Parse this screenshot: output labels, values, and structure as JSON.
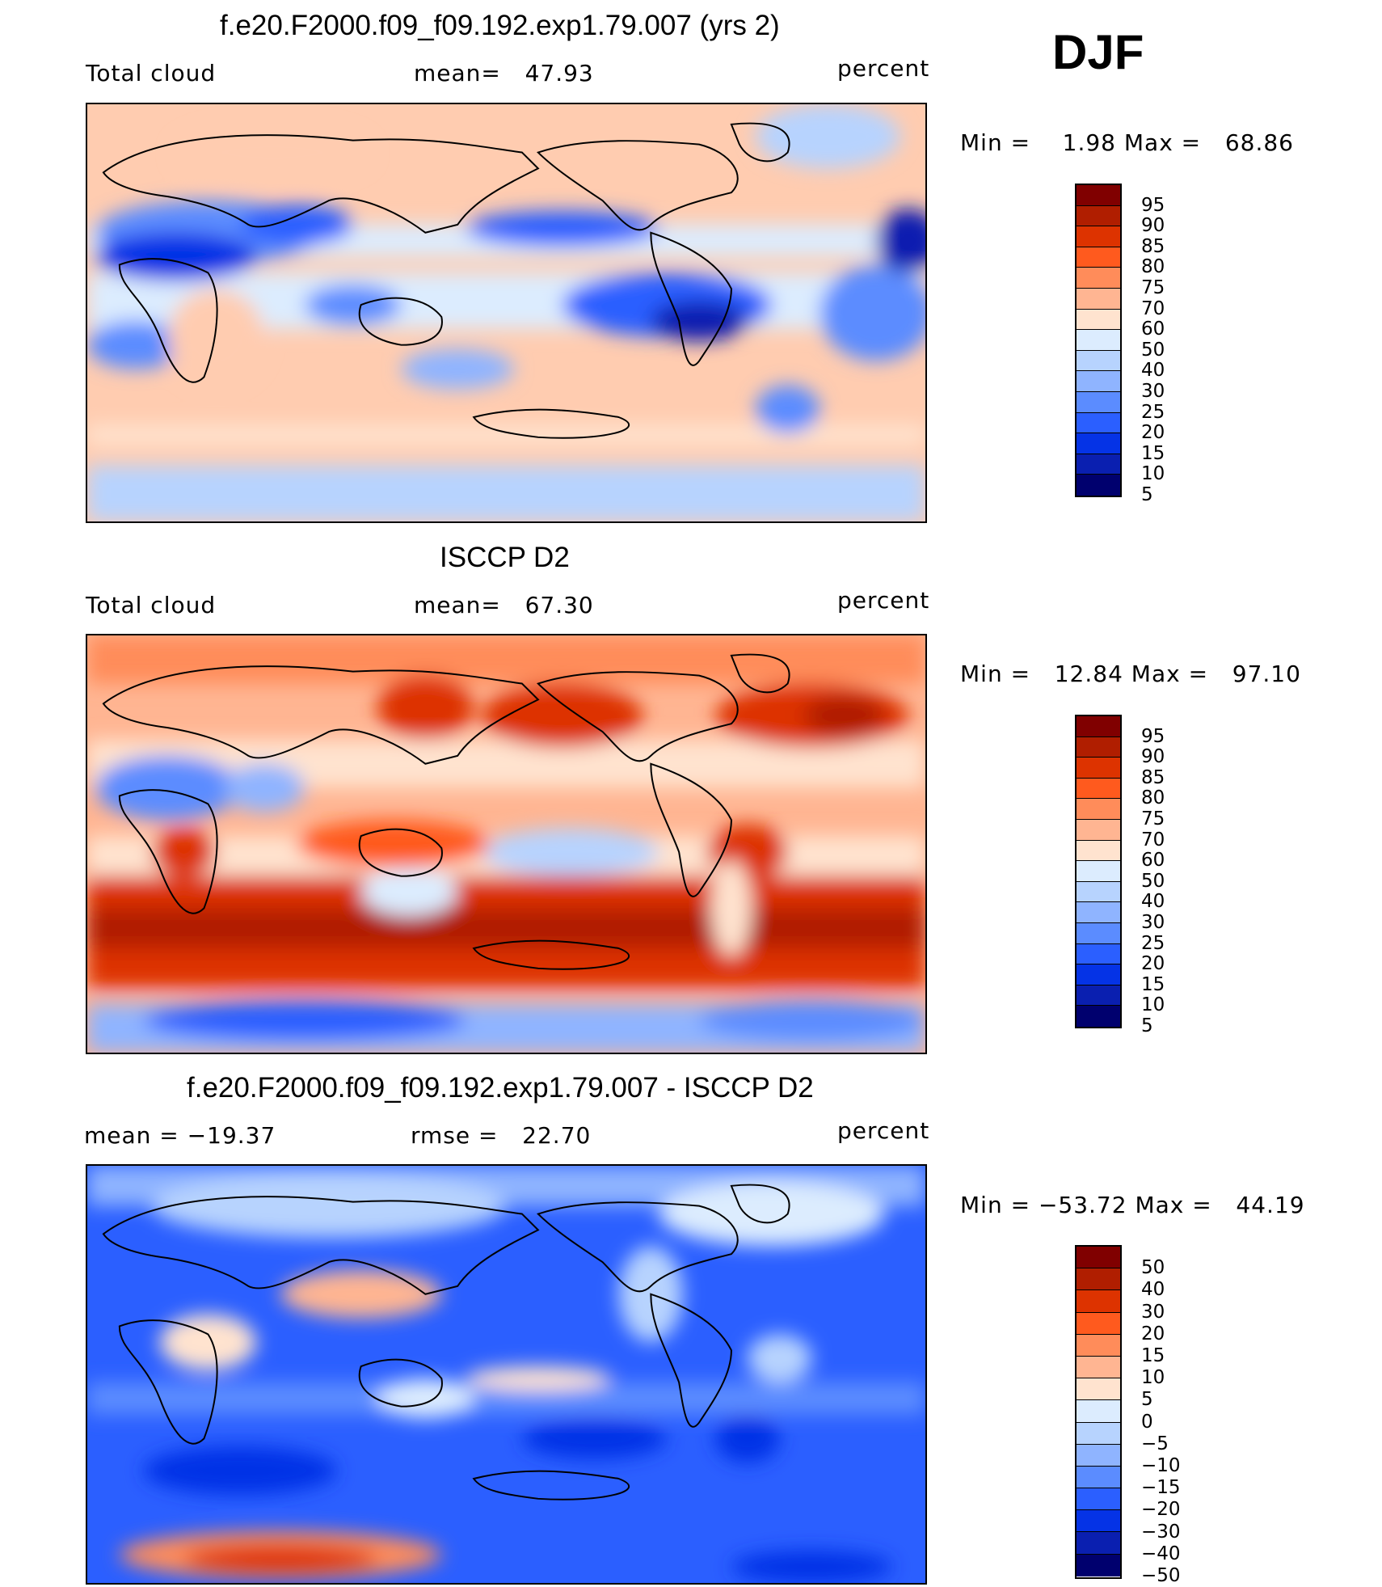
{
  "season": "DJF",
  "panels": [
    {
      "title": "f.e20.F2000.f09_f09.192.exp1.79.007 (yrs 2)",
      "left_label": "Total cloud",
      "center_label": "mean=   47.93",
      "right_label": "percent",
      "minmax": "Min =    1.98 Max =   68.86",
      "colorbar": [
        "95",
        "90",
        "85",
        "80",
        "75",
        "70",
        "60",
        "50",
        "40",
        "30",
        "25",
        "20",
        "15",
        "10",
        "5"
      ]
    },
    {
      "title": "ISCCP D2",
      "left_label": "Total cloud",
      "center_label": "mean=   67.30",
      "right_label": "percent",
      "minmax": "Min =   12.84 Max =   97.10",
      "colorbar": [
        "95",
        "90",
        "85",
        "80",
        "75",
        "70",
        "60",
        "50",
        "40",
        "30",
        "25",
        "20",
        "15",
        "10",
        "5"
      ]
    },
    {
      "title": "f.e20.F2000.f09_f09.192.exp1.79.007 - ISCCP D2",
      "left_label": "mean = −19.37",
      "center_label": "rmse =   22.70",
      "right_label": "percent",
      "minmax": "Min = −53.72 Max =   44.19",
      "colorbar": [
        "50",
        "40",
        "30",
        "20",
        "15",
        "10",
        "5",
        "0",
        "−5",
        "−10",
        "−15",
        "−20",
        "−30",
        "−40",
        "−50"
      ]
    }
  ],
  "colors": {
    "scale": [
      "#800000",
      "#b01e00",
      "#dd3300",
      "#ff5a1e",
      "#ff8c5a",
      "#ffb592",
      "#ffe3cf",
      "#dcecfe",
      "#b7d3fe",
      "#8fb4ff",
      "#5b8cff",
      "#2b5fff",
      "#0533e6",
      "#0a1fb0",
      "#00006e"
    ]
  }
}
